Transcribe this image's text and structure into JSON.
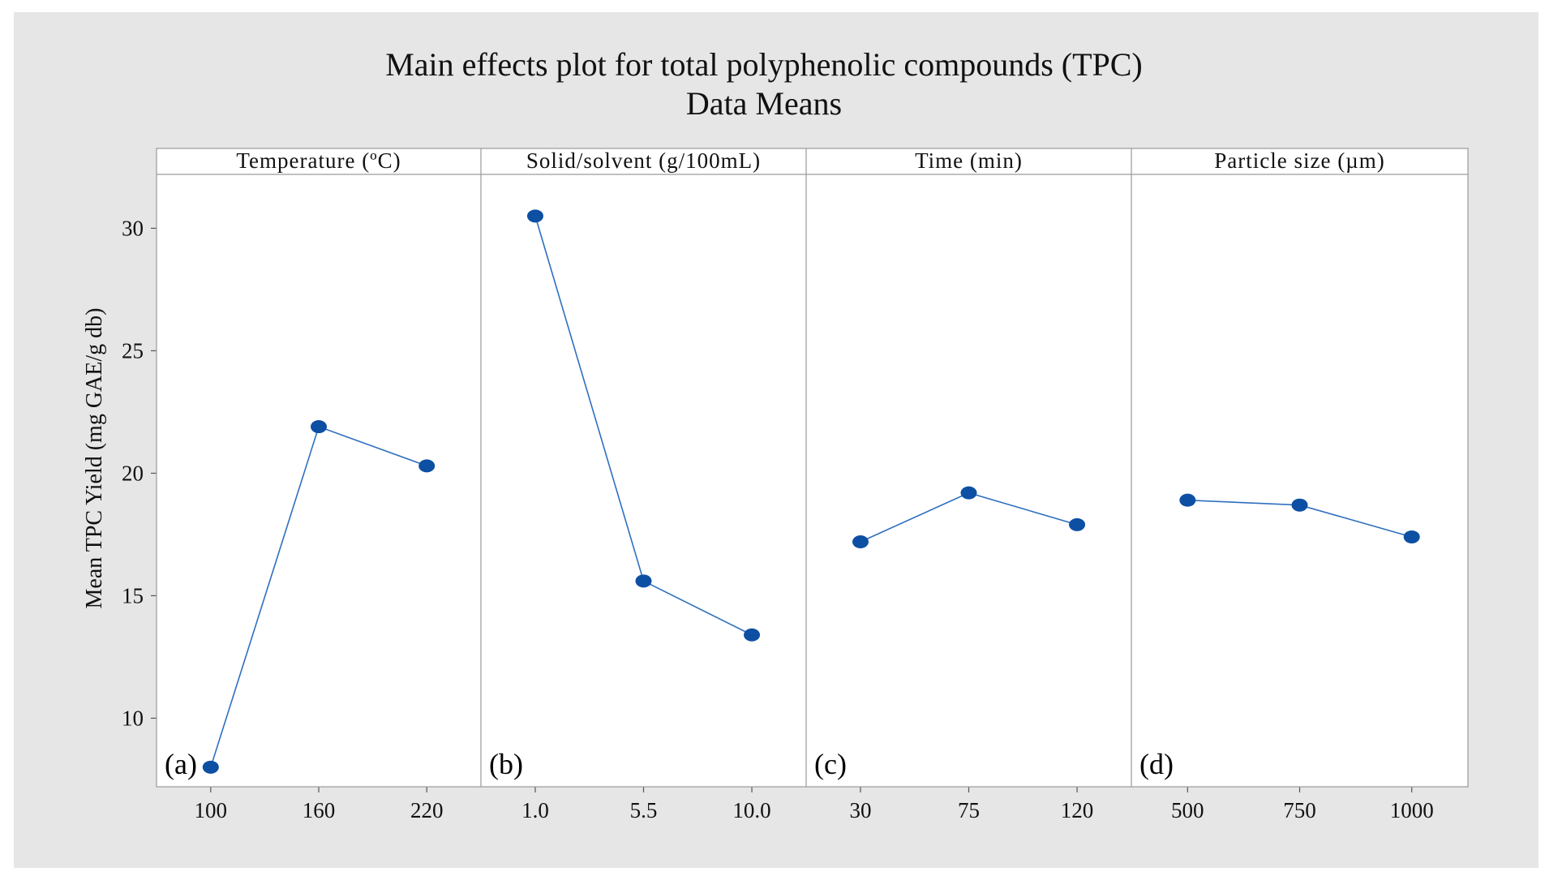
{
  "chart_data": {
    "type": "line",
    "title": "Main effects plot for total polyphenolic compounds (TPC)",
    "subtitle": "Data Means",
    "ylabel": "Mean TPC Yield (mg GAE/g db)",
    "ylim": [
      7.2,
      32.2
    ],
    "yticks": [
      10,
      15,
      20,
      25,
      30
    ],
    "marker_color": "#0d4fa3",
    "line_color": "#2f6fc0",
    "panels": [
      {
        "tag": "(a)",
        "label": "Temperature (ºC)",
        "categories": [
          "100",
          "160",
          "220"
        ],
        "values": [
          8.0,
          21.9,
          20.3
        ]
      },
      {
        "tag": "(b)",
        "label": "Solid/solvent (g/100mL)",
        "categories": [
          "1.0",
          "5.5",
          "10.0"
        ],
        "values": [
          30.5,
          15.6,
          13.4
        ]
      },
      {
        "tag": "(c)",
        "label": "Time (min)",
        "categories": [
          "30",
          "75",
          "120"
        ],
        "values": [
          17.2,
          19.2,
          17.9
        ]
      },
      {
        "tag": "(d)",
        "label": "Particle size (µm)",
        "categories": [
          "500",
          "750",
          "1000"
        ],
        "values": [
          18.9,
          18.7,
          17.4
        ]
      }
    ]
  }
}
